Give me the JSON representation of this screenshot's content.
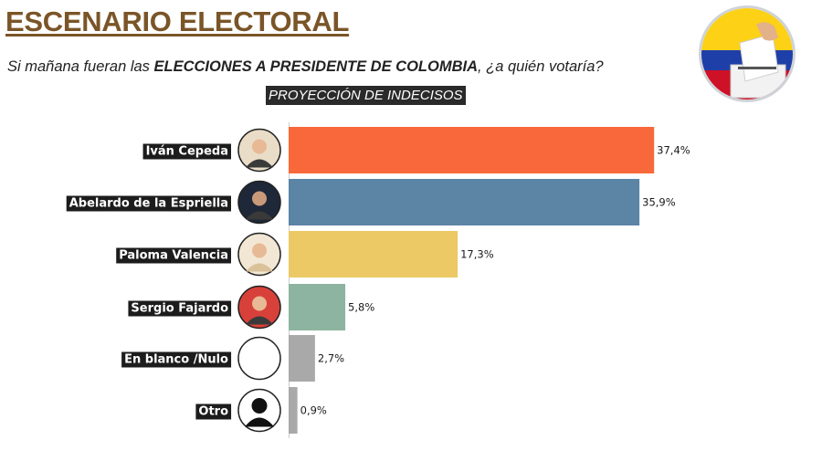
{
  "header": {
    "title": "ESCENARIO ELECTORAL",
    "subtitle_prefix": "Si mañana fueran las ",
    "subtitle_bold": "ELECCIONES A PRESIDENTE DE COLOMBIA",
    "subtitle_suffix": ", ¿a quién votaría?",
    "flag_icon": "colombia-flag-ballot-icon"
  },
  "chart_data": {
    "type": "bar",
    "orientation": "horizontal",
    "title": "PROYECCIÓN DE INDECISOS",
    "categories": [
      "Iván Cepeda",
      "Abelardo de la Espriella",
      "Paloma Valencia",
      "Sergio Fajardo",
      "En blanco /Nulo",
      "Otro"
    ],
    "values": [
      37.4,
      35.9,
      17.3,
      5.8,
      2.7,
      0.9
    ],
    "value_labels": [
      "37,4%",
      "35,9%",
      "17,3%",
      "5,8%",
      "2,7%",
      "0,9%"
    ],
    "colors": [
      "#f9683a",
      "#5b84a5",
      "#ecc965",
      "#8db4a0",
      "#a9a9a9",
      "#a9a9a9"
    ],
    "avatar_icons": [
      "person-avatar-icon",
      "person-avatar-icon",
      "person-avatar-icon",
      "person-avatar-icon",
      "blank-circle-icon",
      "silhouette-icon"
    ],
    "avatar_colors": [
      "#e9ddc8",
      "#1e2838",
      "#f1e7d4",
      "#d8413a",
      "#ffffff",
      "#ffffff"
    ],
    "xlim": [
      0,
      40
    ],
    "grid": false,
    "legend": "none"
  }
}
